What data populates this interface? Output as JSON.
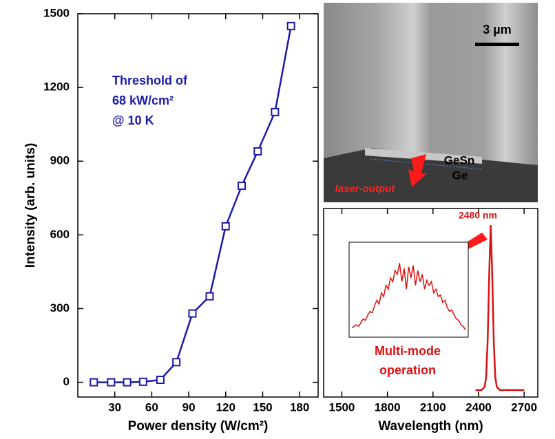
{
  "chart_data": [
    {
      "type": "line",
      "marker": "square",
      "color": "#1a1aaa",
      "xlabel": "Power density (W/cm²)",
      "ylabel": "Intensity (arb. units)",
      "annotations": [
        "Threshold of",
        "68 kW/cm²",
        "@ 10 K"
      ],
      "xlim": [
        0,
        195
      ],
      "ylim": [
        -60,
        1500
      ],
      "xticks": [
        30,
        60,
        90,
        120,
        150,
        180
      ],
      "yticks": [
        0,
        300,
        600,
        900,
        1200,
        1500
      ],
      "x": [
        13,
        27,
        40,
        53,
        67,
        80,
        93,
        107,
        120,
        133,
        146,
        160,
        173
      ],
      "values": [
        0,
        0,
        0,
        2,
        10,
        82,
        280,
        350,
        635,
        800,
        940,
        1100,
        1450
      ]
    },
    {
      "type": "line",
      "color": "#dd1111",
      "xlabel": "Wavelength (nm)",
      "peak_label": "2480 nm",
      "annotations": [
        "Multi-mode",
        "operation"
      ],
      "xlim": [
        1380,
        2790
      ],
      "ylim": [
        -0.042,
        1.1
      ],
      "xticks": [
        1500,
        1800,
        2100,
        2400,
        2700
      ],
      "x": [
        2380,
        2420,
        2440,
        2450,
        2460,
        2470,
        2480,
        2490,
        2500,
        2510,
        2520,
        2540,
        2580,
        2700
      ],
      "values": [
        0,
        0,
        0.02,
        0.08,
        0.3,
        0.7,
        1,
        0.7,
        0.3,
        0.08,
        0.02,
        0,
        0,
        0
      ],
      "inset": {
        "ylim": [
          0,
          1
        ],
        "values": [
          0.08,
          0.1,
          0.12,
          0.1,
          0.15,
          0.2,
          0.18,
          0.25,
          0.3,
          0.28,
          0.38,
          0.45,
          0.4,
          0.55,
          0.5,
          0.65,
          0.6,
          0.75,
          0.7,
          0.85,
          0.8,
          0.95,
          0.7,
          0.88,
          0.6,
          0.9,
          0.75,
          0.92,
          0.65,
          0.85,
          0.7,
          0.8,
          0.6,
          0.72,
          0.65,
          0.7,
          0.55,
          0.6,
          0.5,
          0.52,
          0.42,
          0.45,
          0.35,
          0.3,
          0.32,
          0.25,
          0.2,
          0.18,
          0.12,
          0.1,
          0.05
        ]
      }
    }
  ],
  "sem_image": {
    "scale_bar": "3 µm",
    "labels": [
      "GeSn",
      "Ge"
    ],
    "arrow_label": "laser-output"
  }
}
